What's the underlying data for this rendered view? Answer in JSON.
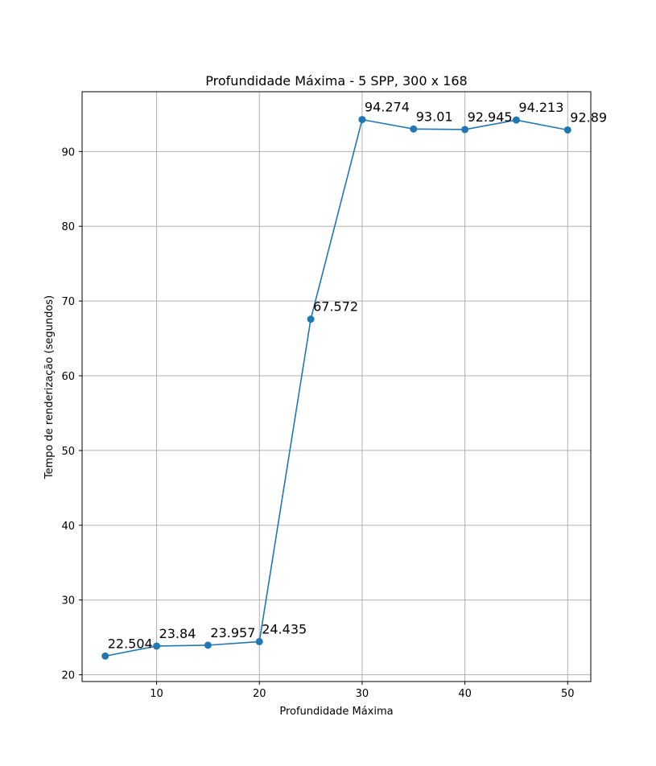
{
  "chart_data": {
    "type": "line",
    "title": "Profundidade Máxima - 5 SPP, 300 x 168",
    "xlabel": "Profundidade Máxima",
    "ylabel": "Tempo de renderização (segundos)",
    "xlim": [
      2.75,
      52.25
    ],
    "ylim": [
      19.1,
      98.0
    ],
    "xticks": [
      10,
      20,
      30,
      40,
      50
    ],
    "yticks": [
      20,
      30,
      40,
      50,
      60,
      70,
      80,
      90
    ],
    "grid": true,
    "series": [
      {
        "color": "#1f77b4",
        "marker": "circle",
        "x": [
          5,
          10,
          15,
          20,
          25,
          30,
          35,
          40,
          45,
          50
        ],
        "y": [
          22.504,
          23.84,
          23.957,
          24.435,
          67.572,
          94.274,
          93.01,
          92.945,
          94.213,
          92.89
        ],
        "labels": [
          "22.504",
          "23.84",
          "23.957",
          "24.435",
          "67.572",
          "94.274",
          "93.01",
          "92.945",
          "94.213",
          "92.89"
        ]
      }
    ]
  }
}
